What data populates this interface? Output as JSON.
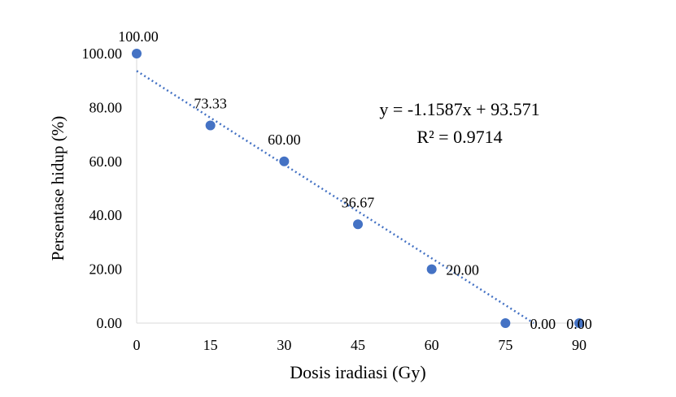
{
  "chart_data": {
    "type": "scatter",
    "xlabel": "Dosis iradiasi (Gy)",
    "ylabel": "Persentase hidup (%)",
    "xlim": [
      0,
      90
    ],
    "ylim": [
      0,
      100
    ],
    "x_ticks": [
      "0",
      "15",
      "30",
      "45",
      "60",
      "75",
      "90"
    ],
    "y_ticks": [
      "0.00",
      "20.00",
      "40.00",
      "60.00",
      "80.00",
      "100.00"
    ],
    "grid": false,
    "series": [
      {
        "x": [
          0,
          15,
          30,
          45,
          60,
          75,
          90
        ],
        "y": [
          100.0,
          73.33,
          60.0,
          36.67,
          20.0,
          0.0,
          0.0
        ],
        "labels": [
          "100.00",
          "73.33",
          "60.00",
          "36.67",
          "20.00",
          "0.00",
          "0.00"
        ],
        "color": "#4472C4"
      }
    ],
    "trendline": {
      "type": "linear",
      "slope": -1.1587,
      "intercept": 93.571,
      "style": "dotted",
      "color": "#4472C4",
      "equation": "y = -1.1587x + 93.571",
      "r_squared": "R² = 0.9714"
    }
  }
}
